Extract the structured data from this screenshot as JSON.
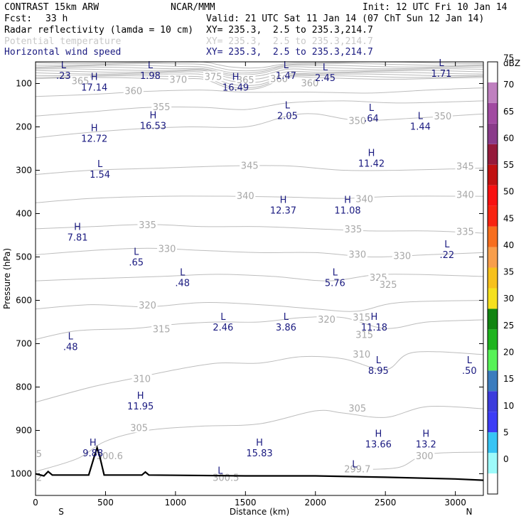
{
  "header": {
    "title": "CONTRAST 15km ARW",
    "center": "NCAR/MMM",
    "init": "Init: 12 UTC Fri 10 Jan 14",
    "fcst_label": "Fcst:",
    "fcst_value": "33 h",
    "valid": "Valid: 21 UTC Sat 11 Jan 14 (07 ChT Sun 12 Jan 14)",
    "fields": [
      {
        "name": "Radar reflectivity (lamda = 10 cm)",
        "xy": "XY= 235.3,  2.5 to 235.3,214.7"
      },
      {
        "name": "Potential temperature",
        "xy": "XY= 235.3,  2.5 to 235.3,214.7"
      },
      {
        "name": "Horizontal wind speed",
        "xy": "XY= 235.3,  2.5 to 235.3,214.7"
      }
    ]
  },
  "chart_data": {
    "type": "contour",
    "xlabel": "Distance (km)",
    "ylabel": "Pressure (hPa)",
    "xlim": [
      0,
      3200
    ],
    "ylim": [
      1050,
      50
    ],
    "x_ticks": [
      "0",
      "500",
      "1000",
      "1500",
      "2000",
      "2500",
      "3000"
    ],
    "y_ticks": [
      "100",
      "200",
      "300",
      "400",
      "500",
      "600",
      "700",
      "800",
      "900",
      "1000"
    ],
    "x_end_labels": {
      "left": "S",
      "right": "N"
    },
    "theta_contours": [
      {
        "level": "300",
        "points": [
          [
            2350,
            990
          ],
          [
            2600,
            985
          ],
          [
            2800,
            955
          ],
          [
            3200,
            950
          ]
        ],
        "label_x": 2780,
        "label_p": 960
      },
      {
        "level": "305",
        "points": [
          [
            0,
            995
          ],
          [
            300,
            965
          ],
          [
            500,
            925
          ],
          [
            800,
            900
          ],
          [
            1200,
            890
          ],
          [
            1600,
            885
          ],
          [
            2000,
            855
          ],
          [
            2200,
            860
          ],
          [
            2500,
            870
          ],
          [
            2800,
            845
          ],
          [
            3200,
            850
          ]
        ],
        "label_x": 740,
        "label_p": 895
      },
      {
        "level": "310",
        "points": [
          [
            0,
            835
          ],
          [
            400,
            800
          ],
          [
            700,
            780
          ],
          [
            1000,
            760
          ],
          [
            1300,
            745
          ],
          [
            1600,
            745
          ],
          [
            1900,
            730
          ],
          [
            2200,
            735
          ],
          [
            2500,
            760
          ],
          [
            2700,
            720
          ],
          [
            3200,
            725
          ]
        ],
        "label_x": 760,
        "label_p": 782
      },
      {
        "level": "315",
        "points": [
          [
            0,
            690
          ],
          [
            300,
            670
          ],
          [
            700,
            665
          ],
          [
            1000,
            655
          ],
          [
            1300,
            650
          ],
          [
            1600,
            650
          ],
          [
            1900,
            640
          ],
          [
            2200,
            640
          ],
          [
            2500,
            665
          ],
          [
            2800,
            650
          ],
          [
            3200,
            645
          ]
        ],
        "label_x": 900,
        "label_p": 667
      },
      {
        "level": "320",
        "points": [
          [
            0,
            620
          ],
          [
            400,
            610
          ],
          [
            800,
            615
          ],
          [
            1200,
            605
          ],
          [
            1600,
            610
          ],
          [
            2000,
            620
          ],
          [
            2300,
            625
          ],
          [
            2600,
            605
          ],
          [
            3200,
            600
          ]
        ],
        "label_x": 800,
        "label_p": 612
      },
      {
        "level": "325",
        "points": [
          [
            0,
            555
          ],
          [
            400,
            550
          ],
          [
            900,
            545
          ],
          [
            1300,
            540
          ],
          [
            1700,
            545
          ],
          [
            2100,
            555
          ],
          [
            2500,
            540
          ],
          [
            3200,
            545
          ]
        ],
        "label_x": 2450,
        "label_p": 548
      },
      {
        "level": "330",
        "points": [
          [
            0,
            495
          ],
          [
            400,
            485
          ],
          [
            800,
            480
          ],
          [
            1200,
            485
          ],
          [
            1600,
            490
          ],
          [
            2000,
            490
          ],
          [
            2400,
            500
          ],
          [
            2800,
            495
          ],
          [
            3200,
            490
          ]
        ],
        "label_x": 940,
        "label_p": 482
      },
      {
        "level": "335",
        "points": [
          [
            0,
            435
          ],
          [
            400,
            430
          ],
          [
            800,
            425
          ],
          [
            1200,
            430
          ],
          [
            1600,
            430
          ],
          [
            2000,
            435
          ],
          [
            2400,
            440
          ],
          [
            2800,
            440
          ],
          [
            3200,
            445
          ]
        ],
        "label_x": 800,
        "label_p": 427
      },
      {
        "level": "340",
        "points": [
          [
            0,
            375
          ],
          [
            400,
            365
          ],
          [
            900,
            360
          ],
          [
            1400,
            360
          ],
          [
            1800,
            362
          ],
          [
            2200,
            365
          ],
          [
            2600,
            360
          ],
          [
            3200,
            360
          ]
        ],
        "label_x": 1500,
        "label_p": 360
      },
      {
        "level": "345",
        "points": [
          [
            0,
            310
          ],
          [
            400,
            300
          ],
          [
            900,
            295
          ],
          [
            1400,
            290
          ],
          [
            1800,
            290
          ],
          [
            2200,
            300
          ],
          [
            2600,
            300
          ],
          [
            3200,
            295
          ]
        ],
        "label_x": 1530,
        "label_p": 290
      },
      {
        "level": "350",
        "points": [
          [
            0,
            225
          ],
          [
            300,
            215
          ],
          [
            700,
            205
          ],
          [
            1100,
            200
          ],
          [
            1500,
            200
          ],
          [
            1800,
            175
          ],
          [
            2000,
            170
          ],
          [
            2300,
            185
          ],
          [
            2700,
            180
          ],
          [
            3200,
            170
          ]
        ],
        "label_x": 2300,
        "label_p": 187
      },
      {
        "level": "355",
        "points": [
          [
            0,
            175
          ],
          [
            400,
            165
          ],
          [
            800,
            155
          ],
          [
            1200,
            155
          ],
          [
            1500,
            160
          ],
          [
            1800,
            145
          ],
          [
            2200,
            140
          ],
          [
            2600,
            145
          ],
          [
            3200,
            140
          ]
        ],
        "label_x": 900,
        "label_p": 155
      },
      {
        "level": "360",
        "points": [
          [
            0,
            130
          ],
          [
            400,
            125
          ],
          [
            800,
            118
          ],
          [
            1200,
            115
          ],
          [
            1500,
            120
          ],
          [
            2000,
            120
          ],
          [
            2400,
            122
          ],
          [
            2800,
            115
          ],
          [
            3200,
            110
          ]
        ],
        "label_x": 700,
        "label_p": 118
      }
    ],
    "theta_labels_extra": [
      {
        "text": "375",
        "x": 1270,
        "p": 85
      },
      {
        "text": "370",
        "x": 1020,
        "p": 92
      },
      {
        "text": "365",
        "x": 320,
        "p": 95
      },
      {
        "text": "365",
        "x": 1500,
        "p": 93
      },
      {
        "text": "360",
        "x": 1740,
        "p": 90
      },
      {
        "text": "360",
        "x": 1960,
        "p": 100
      },
      {
        "text": "350",
        "x": 2910,
        "p": 176
      },
      {
        "text": "345",
        "x": 3070,
        "p": 292
      },
      {
        "text": "340",
        "x": 3070,
        "p": 357
      },
      {
        "text": "340",
        "x": 2350,
        "p": 367
      },
      {
        "text": "335",
        "x": 3070,
        "p": 443
      },
      {
        "text": "335",
        "x": 2270,
        "p": 437
      },
      {
        "text": "330",
        "x": 2300,
        "p": 495
      },
      {
        "text": "330",
        "x": 2620,
        "p": 498
      },
      {
        "text": "325",
        "x": 2520,
        "p": 565
      },
      {
        "text": "320",
        "x": 2080,
        "p": 645
      },
      {
        "text": "315",
        "x": 2350,
        "p": 680
      },
      {
        "text": "315",
        "x": 2330,
        "p": 640
      },
      {
        "text": "310",
        "x": 2330,
        "p": 725
      },
      {
        "text": "305",
        "x": 2300,
        "p": 850
      },
      {
        "text": "300.6",
        "x": 530,
        "p": 960
      },
      {
        "text": "300.5",
        "x": 1360,
        "p": 1010
      },
      {
        "text": "299.7",
        "x": 2300,
        "p": 990
      },
      {
        "text": "5",
        "x": 25,
        "p": 955
      },
      {
        "text": "2",
        "x": 25,
        "p": 1010
      }
    ],
    "wind_extrema": [
      {
        "type": "L",
        "value": ".23",
        "x": 200,
        "p": 65
      },
      {
        "type": "L",
        "value": "1.98",
        "x": 820,
        "p": 65
      },
      {
        "type": "L",
        "value": "1.47",
        "x": 1790,
        "p": 65
      },
      {
        "type": "L",
        "value": "2.45",
        "x": 2070,
        "p": 70
      },
      {
        "type": "L",
        "value": "1.71",
        "x": 2900,
        "p": 60
      },
      {
        "type": "H",
        "value": "17.14",
        "x": 420,
        "p": 92
      },
      {
        "type": "H",
        "value": "16.49",
        "x": 1430,
        "p": 92
      },
      {
        "type": "L",
        "value": "2.05",
        "x": 1800,
        "p": 157
      },
      {
        "type": "L",
        "value": ".64",
        "x": 2400,
        "p": 163
      },
      {
        "type": "L",
        "value": "1.44",
        "x": 2750,
        "p": 182
      },
      {
        "type": "H",
        "value": "16.53",
        "x": 840,
        "p": 180
      },
      {
        "type": "H",
        "value": "12.72",
        "x": 420,
        "p": 210
      },
      {
        "type": "H",
        "value": "11.42",
        "x": 2400,
        "p": 267
      },
      {
        "type": "L",
        "value": "1.54",
        "x": 460,
        "p": 293
      },
      {
        "type": "H",
        "value": "12.37",
        "x": 1770,
        "p": 375
      },
      {
        "type": "H",
        "value": "11.08",
        "x": 2230,
        "p": 375
      },
      {
        "type": "H",
        "value": "7.81",
        "x": 300,
        "p": 438
      },
      {
        "type": "L",
        "value": ".22",
        "x": 2940,
        "p": 478
      },
      {
        "type": "L",
        "value": ".65",
        "x": 720,
        "p": 495
      },
      {
        "type": "L",
        "value": ".48",
        "x": 1050,
        "p": 543
      },
      {
        "type": "L",
        "value": "5.76",
        "x": 2140,
        "p": 543
      },
      {
        "type": "L",
        "value": "2.46",
        "x": 1340,
        "p": 645
      },
      {
        "type": "L",
        "value": "3.86",
        "x": 1790,
        "p": 645
      },
      {
        "type": "H",
        "value": "11.18",
        "x": 2420,
        "p": 645
      },
      {
        "type": "L",
        "value": ".48",
        "x": 250,
        "p": 690
      },
      {
        "type": "L",
        "value": "8.95",
        "x": 2450,
        "p": 745
      },
      {
        "type": "L",
        "value": ".50",
        "x": 3100,
        "p": 745
      },
      {
        "type": "H",
        "value": "11.95",
        "x": 750,
        "p": 827
      },
      {
        "type": "H",
        "value": "13.66",
        "x": 2450,
        "p": 915
      },
      {
        "type": "H",
        "value": "13.2",
        "x": 2790,
        "p": 915
      },
      {
        "type": "H",
        "value": "9.88",
        "x": 410,
        "p": 935
      },
      {
        "type": "H",
        "value": "15.83",
        "x": 1600,
        "p": 935
      },
      {
        "type": "L",
        "value": "",
        "x": 1320,
        "p": 1000
      },
      {
        "type": "L",
        "value": "",
        "x": 2280,
        "p": 985
      }
    ],
    "terrain": [
      [
        0,
        1000
      ],
      [
        60,
        1005
      ],
      [
        90,
        995
      ],
      [
        120,
        1003
      ],
      [
        380,
        1003
      ],
      [
        420,
        960
      ],
      [
        440,
        940
      ],
      [
        460,
        962
      ],
      [
        490,
        1003
      ],
      [
        760,
        1003
      ],
      [
        785,
        996
      ],
      [
        810,
        1003
      ],
      [
        1500,
        1005
      ],
      [
        2000,
        1005
      ],
      [
        2500,
        1008
      ],
      [
        3000,
        1012
      ],
      [
        3200,
        1015
      ]
    ],
    "colorbar": {
      "title": "dBZ",
      "levels": [
        "0",
        "5",
        "10",
        "15",
        "20",
        "25",
        "30",
        "35",
        "40",
        "45",
        "50",
        "55",
        "60",
        "65",
        "70",
        "75"
      ],
      "colors": [
        "#ffffff",
        "#9dfafa",
        "#38c4f4",
        "#3d3df6",
        "#3c3cdc",
        "#3b7cbe",
        "#57f257",
        "#1eb41e",
        "#118411",
        "#f5e01e",
        "#f7c11c",
        "#f89e4b",
        "#f76e1e",
        "#f82411",
        "#f81111",
        "#c11111",
        "#951a3b",
        "#8a3b8a",
        "#a14aa1",
        "#bf80bf",
        "#ffffff"
      ]
    }
  }
}
